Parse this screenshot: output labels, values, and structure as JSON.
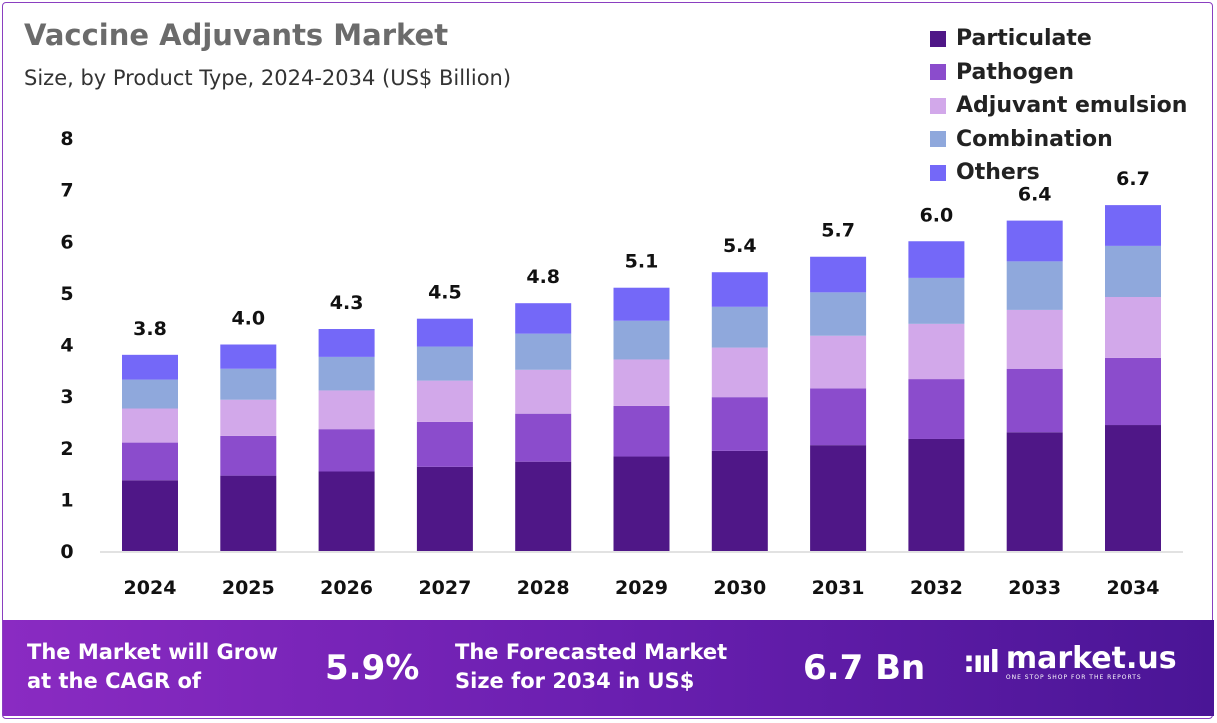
{
  "title": "Vaccine Adjuvants Market",
  "subtitle": "Size, by Product Type, 2024-2034 (US$ Billion)",
  "chart_data": {
    "type": "bar",
    "stacked": true,
    "title": "Vaccine Adjuvants Market",
    "subtitle": "Size, by Product Type, 2024-2034 (US$ Billion)",
    "xlabel": "",
    "ylabel": "",
    "ylim": [
      0,
      8
    ],
    "yticks": [
      "0",
      "1",
      "2",
      "3",
      "4",
      "5",
      "6",
      "7",
      "8"
    ],
    "grid": false,
    "legend_position": "top-right",
    "categories": [
      "2024",
      "2025",
      "2026",
      "2027",
      "2028",
      "2029",
      "2030",
      "2031",
      "2032",
      "2033",
      "2034"
    ],
    "totals": [
      "3.8",
      "4.0",
      "4.3",
      "4.5",
      "4.8",
      "5.1",
      "5.4",
      "5.7",
      "6.0",
      "6.4",
      "6.7"
    ],
    "series": [
      {
        "name": "Particulate",
        "color": "#4f1787",
        "values": [
          1.37,
          1.46,
          1.54,
          1.63,
          1.73,
          1.83,
          1.94,
          2.05,
          2.17,
          2.3,
          2.44
        ]
      },
      {
        "name": "Pathogen",
        "color": "#8b4ccc",
        "values": [
          0.73,
          0.77,
          0.82,
          0.87,
          0.93,
          0.98,
          1.04,
          1.1,
          1.16,
          1.23,
          1.3
        ]
      },
      {
        "name": "Adjuvant emulsion",
        "color": "#d2a8ea",
        "values": [
          0.66,
          0.7,
          0.75,
          0.8,
          0.85,
          0.9,
          0.96,
          1.02,
          1.07,
          1.14,
          1.18
        ]
      },
      {
        "name": "Combination",
        "color": "#8fa8dc",
        "values": [
          0.56,
          0.6,
          0.65,
          0.66,
          0.7,
          0.75,
          0.79,
          0.84,
          0.89,
          0.94,
          0.99
        ]
      },
      {
        "name": "Others",
        "color": "#7468f8",
        "values": [
          0.48,
          0.47,
          0.54,
          0.54,
          0.59,
          0.64,
          0.67,
          0.69,
          0.71,
          0.79,
          0.79
        ]
      }
    ]
  },
  "banner": {
    "cagr_text": "The Market will Grow at the CAGR of",
    "cagr_line1": "The Market will Grow",
    "cagr_line2": "at the CAGR of",
    "cagr_value": "5.9%",
    "forecast_line1": "The Forecasted Market",
    "forecast_line2": "Size for 2034 in US$",
    "forecast_value": "6.7 Bn",
    "logo_name": "market.us",
    "logo_tagline": "ONE STOP SHOP FOR THE REPORTS"
  }
}
